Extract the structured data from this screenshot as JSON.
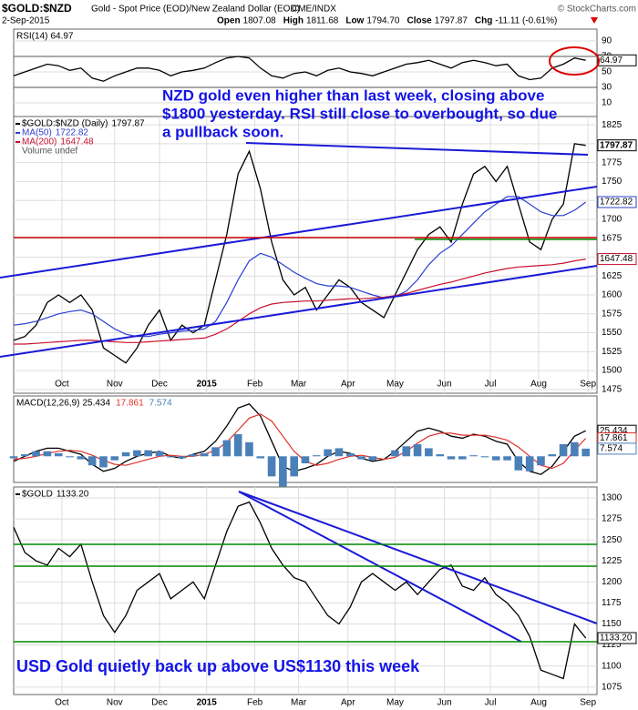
{
  "header": {
    "symbol": "$GOLD:$NZD",
    "description": "Gold - Spot Price (EOD)/New Zealand Dollar (EOD)",
    "exchange": "CME/INDX",
    "date": "2-Sep-2015",
    "credit": "© StockCharts.com",
    "quote": [
      {
        "label": "Open",
        "value": 1807.08
      },
      {
        "label": "High",
        "value": 1811.68
      },
      {
        "label": "Low",
        "value": 1794.7,
        "value_label": "1794.70"
      },
      {
        "label": "Close",
        "value": 1797.87
      },
      {
        "label": "Chg",
        "value": -11.11,
        "value_label": "-11.11 (-0.61%)"
      }
    ]
  },
  "chart_data": [
    {
      "type": "line",
      "title": "RSI(14)",
      "x": [
        0,
        1,
        2,
        3,
        4,
        5,
        6,
        7,
        8,
        9,
        10,
        11,
        12,
        13,
        14,
        15,
        16,
        17,
        18,
        19,
        20,
        21,
        22,
        23,
        24,
        25,
        26,
        27,
        28,
        29,
        30,
        31,
        32,
        33,
        34,
        35,
        36,
        37,
        38,
        39,
        40,
        41,
        42,
        43,
        44,
        45,
        46,
        47,
        48,
        49,
        50,
        51
      ],
      "xlim": [
        0,
        52
      ],
      "ylim": [
        -7.6,
        105.3
      ],
      "yticks": [
        10,
        30,
        50,
        70,
        90
      ],
      "grid": true,
      "series": [
        {
          "name": "RSI(14)",
          "color": "#000000",
          "values": [
            45,
            50,
            55,
            60,
            58,
            52,
            55,
            42,
            38,
            45,
            50,
            55,
            55,
            52,
            45,
            50,
            52,
            55,
            62,
            68,
            70,
            68,
            55,
            45,
            42,
            48,
            50,
            45,
            52,
            55,
            50,
            48,
            45,
            50,
            55,
            60,
            62,
            65,
            60,
            55,
            62,
            65,
            62,
            58,
            60,
            45,
            40,
            42,
            55,
            60,
            68,
            64.97
          ]
        }
      ],
      "annotation_lines": [
        "NZD gold even higher than last week, closing above",
        "$1800 yesterday. RSI still close to overbought, so due",
        "a pullback soon."
      ]
    },
    {
      "type": "line",
      "legend_note": "Volume undef",
      "x": [
        0,
        1,
        2,
        3,
        4,
        5,
        6,
        7,
        8,
        9,
        10,
        11,
        12,
        13,
        14,
        15,
        16,
        17,
        18,
        19,
        20,
        21,
        22,
        23,
        24,
        25,
        26,
        27,
        28,
        29,
        30,
        31,
        32,
        33,
        34,
        35,
        36,
        37,
        38,
        39,
        40,
        41,
        42,
        43,
        44,
        45,
        46,
        47,
        48,
        49,
        50,
        51
      ],
      "xlim": [
        0,
        52
      ],
      "ylim": [
        1470,
        1836
      ],
      "yticks": [
        1475,
        1500,
        1525,
        1550,
        1575,
        1600,
        1625,
        1650,
        1675,
        1700,
        1725,
        1750,
        1775,
        1800,
        1825
      ],
      "grid": true,
      "xticks": [
        {
          "value": 4.3,
          "label": "Oct"
        },
        {
          "value": 9,
          "label": "Nov"
        },
        {
          "value": 13,
          "label": "Dec"
        },
        {
          "value": 17.2,
          "label": "2015"
        },
        {
          "value": 21.5,
          "label": "Feb"
        },
        {
          "value": 25.4,
          "label": "Mar"
        },
        {
          "value": 29.8,
          "label": "Apr"
        },
        {
          "value": 34,
          "label": "May"
        },
        {
          "value": 38.4,
          "label": "Jun"
        },
        {
          "value": 42.5,
          "label": "Jul"
        },
        {
          "value": 46.8,
          "label": "Aug"
        },
        {
          "value": 51.2,
          "label": "Sep"
        }
      ],
      "series": [
        {
          "name": "$GOLD:$NZD (Daily)",
          "color": "#000000",
          "values": [
            1540,
            1545,
            1560,
            1590,
            1600,
            1590,
            1600,
            1580,
            1530,
            1520,
            1510,
            1530,
            1560,
            1580,
            1540,
            1560,
            1550,
            1560,
            1620,
            1680,
            1760,
            1790,
            1740,
            1670,
            1620,
            1600,
            1610,
            1580,
            1600,
            1620,
            1610,
            1590,
            1580,
            1570,
            1600,
            1630,
            1660,
            1680,
            1690,
            1670,
            1720,
            1760,
            1770,
            1750,
            1770,
            1720,
            1670,
            1660,
            1700,
            1720,
            1800,
            1797.87
          ]
        },
        {
          "name": "MA(50)",
          "color": "#2a3fd0",
          "values": [
            1560,
            1562,
            1565,
            1570,
            1575,
            1578,
            1580,
            1575,
            1565,
            1555,
            1548,
            1545,
            1545,
            1548,
            1550,
            1552,
            1553,
            1555,
            1565,
            1590,
            1620,
            1645,
            1655,
            1650,
            1640,
            1630,
            1622,
            1615,
            1612,
            1612,
            1610,
            1605,
            1600,
            1596,
            1598,
            1605,
            1620,
            1640,
            1655,
            1665,
            1680,
            1695,
            1710,
            1720,
            1730,
            1730,
            1720,
            1710,
            1705,
            1705,
            1712,
            1722.82
          ]
        },
        {
          "name": "MA(200)",
          "color": "#c8102e",
          "values": [
            1535,
            1535,
            1536,
            1537,
            1538,
            1539,
            1540,
            1540,
            1539,
            1538,
            1537,
            1537,
            1538,
            1539,
            1540,
            1541,
            1542,
            1543,
            1548,
            1555,
            1565,
            1575,
            1583,
            1588,
            1590,
            1591,
            1592,
            1592,
            1593,
            1594,
            1595,
            1595,
            1596,
            1597,
            1599,
            1602,
            1606,
            1610,
            1614,
            1617,
            1621,
            1625,
            1629,
            1632,
            1635,
            1637,
            1638,
            1639,
            1640,
            1642,
            1645,
            1647.48
          ]
        }
      ]
    },
    {
      "type": "line",
      "title": "MACD(12,26,9)",
      "x": [
        0,
        1,
        2,
        3,
        4,
        5,
        6,
        7,
        8,
        9,
        10,
        11,
        12,
        13,
        14,
        15,
        16,
        17,
        18,
        19,
        20,
        21,
        22,
        23,
        24,
        25,
        26,
        27,
        28,
        29,
        30,
        31,
        32,
        33,
        34,
        35,
        36,
        37,
        38,
        39,
        40,
        41,
        42,
        43,
        44,
        45,
        46,
        47,
        48,
        49,
        50,
        51
      ],
      "xlim": [
        0,
        52
      ],
      "ylim": [
        -26,
        60
      ],
      "grid": false,
      "series": [
        {
          "name": "MACD",
          "color": "#000000",
          "values": [
            -5,
            0,
            5,
            8,
            8,
            5,
            2,
            -8,
            -15,
            -12,
            -5,
            0,
            3,
            5,
            0,
            -2,
            2,
            5,
            15,
            30,
            48,
            52,
            40,
            15,
            -10,
            -15,
            -12,
            -8,
            0,
            5,
            3,
            -2,
            -5,
            -3,
            5,
            15,
            25,
            28,
            25,
            20,
            18,
            22,
            20,
            15,
            12,
            -5,
            -15,
            -18,
            -10,
            5,
            20,
            25.434
          ]
        },
        {
          "name": "Signal",
          "color": "#e0302a",
          "values": [
            -3,
            -2,
            0,
            3,
            5,
            6,
            5,
            1,
            -4,
            -8,
            -9,
            -6,
            -3,
            0,
            1,
            0,
            0,
            2,
            6,
            14,
            26,
            38,
            42,
            35,
            20,
            5,
            -5,
            -9,
            -7,
            -3,
            0,
            1,
            -1,
            -3,
            -1,
            5,
            13,
            20,
            23,
            23,
            21,
            21,
            21,
            19,
            16,
            9,
            0,
            -9,
            -12,
            -7,
            6,
            17.861
          ]
        },
        {
          "name": "Histogram",
          "color": "#4a80b8",
          "style": "bar",
          "values": [
            -2,
            2,
            5,
            5,
            3,
            -1,
            -3,
            -9,
            -11,
            -4,
            4,
            6,
            6,
            5,
            -1,
            -2,
            2,
            3,
            9,
            16,
            22,
            14,
            -2,
            -20,
            -30,
            -20,
            -7,
            1,
            7,
            8,
            3,
            -3,
            -4,
            0,
            6,
            10,
            12,
            8,
            2,
            -3,
            -3,
            1,
            -1,
            -4,
            -4,
            -14,
            -15,
            -9,
            2,
            12,
            14,
            7.574
          ]
        }
      ]
    },
    {
      "type": "line",
      "x": [
        0,
        1,
        2,
        3,
        4,
        5,
        6,
        7,
        8,
        9,
        10,
        11,
        12,
        13,
        14,
        15,
        16,
        17,
        18,
        19,
        20,
        21,
        22,
        23,
        24,
        25,
        26,
        27,
        28,
        29,
        30,
        31,
        32,
        33,
        34,
        35,
        36,
        37,
        38,
        39,
        40,
        41,
        42,
        43,
        44,
        45,
        46,
        47,
        48,
        49,
        50,
        51
      ],
      "xlim": [
        0,
        52
      ],
      "ylim": [
        1066,
        1313
      ],
      "yticks": [
        1075,
        1100,
        1125,
        1150,
        1175,
        1200,
        1225,
        1250,
        1275,
        1300
      ],
      "grid": true,
      "xticks": [
        {
          "value": 4.3,
          "label": "Oct"
        },
        {
          "value": 9,
          "label": "Nov"
        },
        {
          "value": 13,
          "label": "Dec"
        },
        {
          "value": 17.2,
          "label": "2015"
        },
        {
          "value": 21.5,
          "label": "Feb"
        },
        {
          "value": 25.4,
          "label": "Mar"
        },
        {
          "value": 29.8,
          "label": "Apr"
        },
        {
          "value": 34,
          "label": "May"
        },
        {
          "value": 38.4,
          "label": "Jun"
        },
        {
          "value": 42.5,
          "label": "Jul"
        },
        {
          "value": 46.8,
          "label": "Aug"
        },
        {
          "value": 51.2,
          "label": "Sep"
        }
      ],
      "series": [
        {
          "name": "$GOLD",
          "color": "#000000",
          "values": [
            1265,
            1235,
            1225,
            1220,
            1240,
            1230,
            1245,
            1200,
            1160,
            1140,
            1160,
            1190,
            1200,
            1210,
            1180,
            1190,
            1200,
            1180,
            1220,
            1260,
            1290,
            1295,
            1270,
            1240,
            1220,
            1205,
            1200,
            1180,
            1160,
            1150,
            1170,
            1200,
            1210,
            1200,
            1190,
            1200,
            1185,
            1200,
            1215,
            1220,
            1195,
            1190,
            1205,
            1185,
            1175,
            1160,
            1135,
            1095,
            1090,
            1085,
            1150,
            1133.2
          ],
          "value_labels_last": "1133.20"
        }
      ],
      "annotation_lines": [
        "USD Gold quietly back up above US$1130 this week"
      ]
    }
  ]
}
